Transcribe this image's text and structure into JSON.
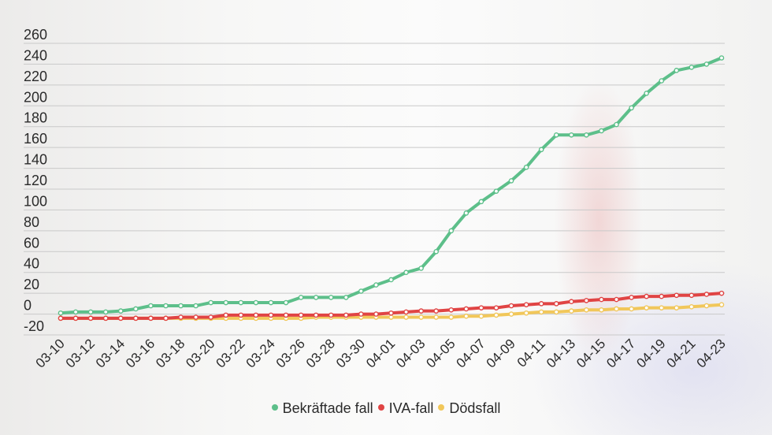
{
  "chart_data": {
    "type": "line",
    "categories": [
      "03-10",
      "03-11",
      "03-12",
      "03-13",
      "03-14",
      "03-15",
      "03-16",
      "03-17",
      "03-18",
      "03-19",
      "03-20",
      "03-21",
      "03-22",
      "03-23",
      "03-24",
      "03-25",
      "03-26",
      "03-27",
      "03-28",
      "03-29",
      "03-30",
      "03-31",
      "04-01",
      "04-02",
      "04-03",
      "04-04",
      "04-05",
      "04-06",
      "04-07",
      "04-08",
      "04-09",
      "04-10",
      "04-11",
      "04-12",
      "04-13",
      "04-14",
      "04-15",
      "04-16",
      "04-17",
      "04-18",
      "04-19",
      "04-20",
      "04-21",
      "04-22",
      "04-23"
    ],
    "x_tick_labels": [
      "03-10",
      "03-12",
      "03-14",
      "03-16",
      "03-18",
      "03-20",
      "03-22",
      "03-24",
      "03-26",
      "03-28",
      "03-30",
      "04-01",
      "04-03",
      "04-05",
      "04-07",
      "04-09",
      "04-11",
      "04-13",
      "04-15",
      "04-17",
      "04-19",
      "04-21",
      "04-23"
    ],
    "y_ticks": [
      -20,
      0,
      20,
      40,
      60,
      80,
      100,
      120,
      140,
      160,
      180,
      200,
      220,
      240,
      260
    ],
    "ylim": [
      -20,
      260
    ],
    "grid": true,
    "legend_position": "bottom-center",
    "series": [
      {
        "name": "Bekräftade fall",
        "color": "#5dbf8a",
        "values": [
          1,
          2,
          2,
          2,
          3,
          5,
          8,
          8,
          8,
          8,
          11,
          11,
          11,
          11,
          11,
          11,
          16,
          16,
          16,
          16,
          22,
          28,
          33,
          40,
          44,
          60,
          80,
          97,
          108,
          118,
          128,
          141,
          158,
          172,
          172,
          172,
          176,
          182,
          198,
          212,
          224,
          234,
          237,
          240,
          246
        ]
      },
      {
        "name": "IVA-fall",
        "color": "#e04444",
        "values": [
          -4,
          -4,
          -4,
          -4,
          -4,
          -4,
          -4,
          -4,
          -3,
          -3,
          -3,
          -1,
          -1,
          -1,
          -1,
          -1,
          -1,
          -1,
          -1,
          -1,
          0,
          0,
          1,
          2,
          3,
          3,
          4,
          5,
          6,
          6,
          8,
          9,
          10,
          10,
          12,
          13,
          14,
          14,
          16,
          17,
          17,
          18,
          18,
          19,
          20
        ]
      },
      {
        "name": "Dödsfall",
        "color": "#f1c75a",
        "values": [
          -4,
          -4,
          -4,
          -4,
          -4,
          -4,
          -4,
          -4,
          -4,
          -4,
          -4,
          -4,
          -4,
          -4,
          -4,
          -4,
          -4,
          -3,
          -3,
          -3,
          -3,
          -3,
          -3,
          -3,
          -3,
          -3,
          -3,
          -2,
          -2,
          -1,
          0,
          1,
          2,
          2,
          3,
          4,
          4,
          5,
          5,
          6,
          6,
          6,
          7,
          8,
          9
        ]
      }
    ]
  }
}
